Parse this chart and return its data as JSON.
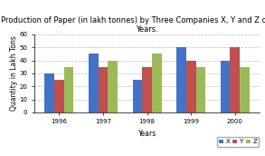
{
  "title": "Production of Paper (in lakh tonnes) by Three Companies X, Y and Z over the\nYears.",
  "xlabel": "Years",
  "ylabel": "Quantity in Lakh Tons",
  "years": [
    "1996",
    "1997",
    "1998",
    "1999",
    "2000"
  ],
  "X": [
    30,
    45,
    25,
    50,
    40
  ],
  "Y": [
    25,
    35,
    35,
    40,
    50
  ],
  "Z": [
    35,
    40,
    45,
    35,
    35
  ],
  "colors": {
    "X": "#4472C4",
    "Y": "#C0504D",
    "Z": "#9BBB59"
  },
  "ylim": [
    0,
    60
  ],
  "yticks": [
    0,
    10,
    20,
    30,
    40,
    50,
    60
  ],
  "bar_width": 0.22,
  "legend_labels": [
    "X",
    "Y",
    "Z"
  ],
  "title_fontsize": 6.0,
  "axis_fontsize": 5.5,
  "tick_fontsize": 5.0,
  "legend_fontsize": 5.0,
  "background_color": "#FFFFFF",
  "grid_color": "#BBBBBB"
}
